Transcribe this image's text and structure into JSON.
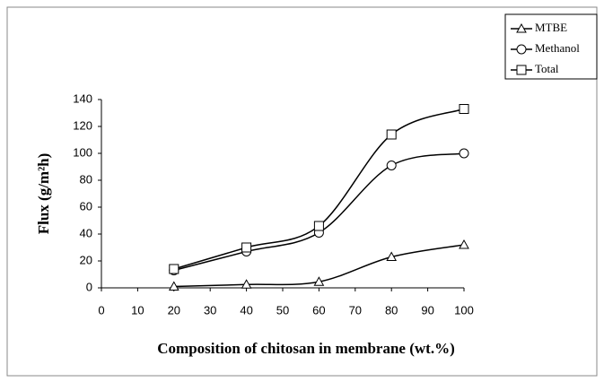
{
  "chart_data": {
    "type": "line",
    "x_label": "Composition of chitosan in membrane (wt.%)",
    "y_label": "Flux (g/m²h)",
    "x": [
      20,
      40,
      60,
      80,
      100
    ],
    "series": [
      {
        "name": "MTBE",
        "color": "#000000",
        "marker": "triangle",
        "values": [
          1,
          2.5,
          4.5,
          23,
          32
        ]
      },
      {
        "name": "Methanol",
        "color": "#000000",
        "marker": "circle",
        "values": [
          13,
          27,
          41,
          91,
          100
        ]
      },
      {
        "name": "Total",
        "color": "#000000",
        "marker": "square",
        "values": [
          14,
          30,
          46,
          114,
          133
        ]
      }
    ],
    "xlim": [
      0,
      100
    ],
    "xticks": [
      0,
      10,
      20,
      30,
      40,
      50,
      60,
      70,
      80,
      90,
      100
    ],
    "ylim": [
      0,
      140
    ],
    "yticks": [
      0,
      20,
      40,
      60,
      80,
      100,
      120,
      140
    ],
    "smooth": true,
    "grid": false,
    "legend": "upper right"
  }
}
